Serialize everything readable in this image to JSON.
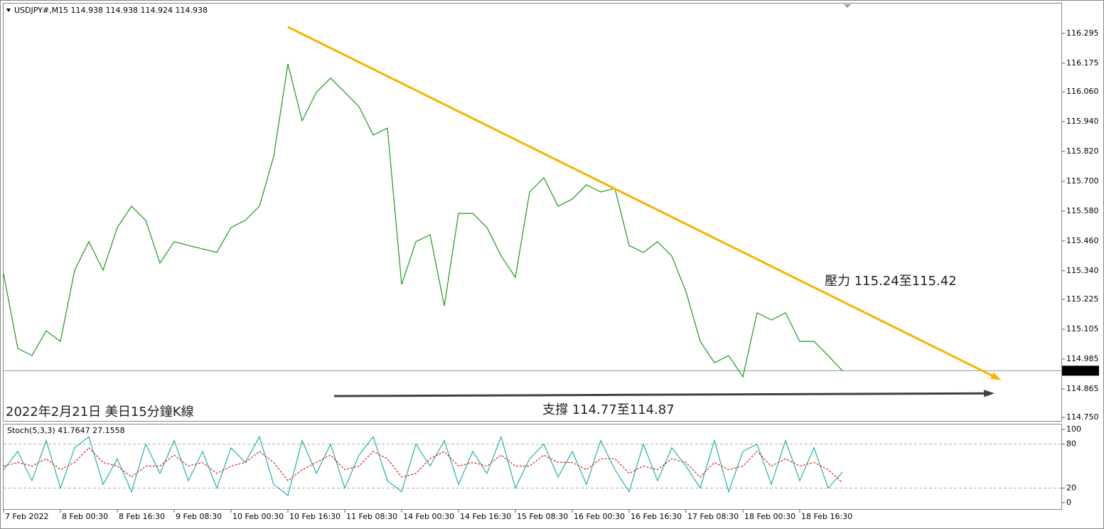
{
  "chart_data": [
    {
      "type": "line",
      "title": "USDJPY#,M15  114.938 114.938 114.924 114.938",
      "x": [
        0,
        8,
        16,
        24,
        32,
        40,
        48,
        56,
        64,
        72,
        80,
        88,
        96,
        104,
        112,
        120,
        128,
        136,
        144,
        152,
        160,
        168,
        176,
        184,
        192,
        200,
        208,
        216,
        224,
        232,
        240,
        248,
        256,
        264,
        272,
        280,
        288,
        296,
        304,
        312,
        320,
        328,
        336,
        344,
        352,
        360,
        368,
        376,
        384,
        392,
        400,
        408,
        416,
        424,
        432,
        440,
        448,
        456,
        464,
        472
      ],
      "values": [
        115.328,
        115.028,
        114.999,
        115.099,
        115.056,
        115.342,
        115.457,
        115.342,
        115.514,
        115.6,
        115.543,
        115.371,
        115.457,
        115.442,
        115.428,
        115.414,
        115.514,
        115.543,
        115.6,
        115.8,
        116.172,
        115.943,
        116.058,
        116.115,
        116.058,
        116.0,
        115.886,
        115.914,
        115.285,
        115.457,
        115.485,
        115.199,
        115.571,
        115.571,
        115.514,
        115.399,
        115.314,
        115.657,
        115.714,
        115.6,
        115.628,
        115.686,
        115.657,
        115.671,
        115.442,
        115.414,
        115.457,
        115.399,
        115.256,
        115.056,
        114.97,
        114.999,
        114.913,
        115.171,
        115.142,
        115.171,
        115.056,
        115.056,
        114.999,
        114.938
      ],
      "color": "#1a9a1a",
      "xlim": [
        0,
        595
      ],
      "ylim": [
        114.736,
        116.415
      ],
      "yticks": [
        116.295,
        116.175,
        {
          "value": 116.06,
          "label": "116.060"
        },
        {
          "value": 115.94,
          "label": "115.940"
        },
        {
          "value": 115.82,
          "label": "115.820"
        },
        {
          "value": 115.7,
          "label": "115.700"
        },
        {
          "value": 115.58,
          "label": "115.580"
        },
        {
          "value": 115.46,
          "label": "115.460"
        },
        {
          "value": 115.34,
          "label": "115.340"
        },
        115.225,
        115.105,
        114.985,
        114.865,
        {
          "value": 114.75,
          "label": "114.750"
        }
      ],
      "current_price": 114.938,
      "lines": [
        {
          "color": "#f5b400",
          "x": [
            160,
            560
          ],
          "y": [
            116.321,
            114.905
          ]
        },
        {
          "color": "#404040",
          "x": [
            186,
            556
          ],
          "y": [
            114.836,
            114.847
          ]
        }
      ],
      "annotations": [
        "壓力 115.24至115.42",
        "支撐 114.77至114.87",
        "2022年2月21日 美日15分鐘K線"
      ]
    },
    {
      "type": "line",
      "title": "Stoch(5,3,3) 41.7647 27.1558",
      "x": [
        0,
        8,
        16,
        24,
        32,
        40,
        48,
        56,
        64,
        72,
        80,
        88,
        96,
        104,
        112,
        120,
        128,
        136,
        144,
        152,
        160,
        168,
        176,
        184,
        192,
        200,
        208,
        216,
        224,
        232,
        240,
        248,
        256,
        264,
        272,
        280,
        288,
        296,
        304,
        312,
        320,
        328,
        336,
        344,
        352,
        360,
        368,
        376,
        384,
        392,
        400,
        408,
        416,
        424,
        432,
        440,
        448,
        456,
        464,
        472
      ],
      "series": [
        {
          "color": "#20b2aa",
          "values": [
            45,
            70,
            30,
            85,
            20,
            75,
            90,
            25,
            60,
            15,
            80,
            40,
            85,
            30,
            70,
            20,
            75,
            55,
            90,
            25,
            10,
            85,
            40,
            80,
            20,
            65,
            90,
            30,
            15,
            80,
            50,
            85,
            25,
            70,
            40,
            90,
            20,
            60,
            80,
            35,
            70,
            25,
            85,
            45,
            15,
            80,
            30,
            75,
            50,
            20,
            85,
            15,
            70,
            80,
            25,
            85,
            30,
            75,
            20,
            41.7647
          ]
        },
        {
          "color": "#e0201c",
          "dashed": true,
          "values": [
            50,
            55,
            50,
            60,
            45,
            55,
            75,
            55,
            50,
            35,
            50,
            50,
            65,
            50,
            55,
            40,
            50,
            55,
            70,
            55,
            30,
            45,
            55,
            65,
            45,
            50,
            70,
            60,
            35,
            40,
            60,
            70,
            50,
            55,
            50,
            65,
            50,
            50,
            65,
            55,
            55,
            45,
            60,
            60,
            40,
            50,
            45,
            60,
            55,
            35,
            55,
            45,
            50,
            70,
            50,
            60,
            50,
            55,
            45,
            27.1558
          ]
        }
      ],
      "xlim": [
        0,
        595
      ],
      "ylim": [
        0,
        100
      ],
      "yticks": [
        100,
        80,
        20,
        0
      ],
      "levels": [
        80,
        20
      ],
      "xticks": [
        {
          "value": 0,
          "label": "7 Feb 2022"
        },
        {
          "value": 32,
          "label": "8 Feb 00:30"
        },
        {
          "value": 64,
          "label": "8 Feb 16:30"
        },
        {
          "value": 96,
          "label": "9 Feb 08:30"
        },
        {
          "value": 128,
          "label": "10 Feb 00:30"
        },
        {
          "value": 160,
          "label": "10 Feb 16:30"
        },
        {
          "value": 192,
          "label": "11 Feb 08:30"
        },
        {
          "value": 224,
          "label": "14 Feb 00:30"
        },
        {
          "value": 256,
          "label": "14 Feb 16:30"
        },
        {
          "value": 288,
          "label": "15 Feb 08:30"
        },
        {
          "value": 320,
          "label": "16 Feb 00:30"
        },
        {
          "value": 352,
          "label": "16 Feb 16:30"
        },
        {
          "value": 384,
          "label": "17 Feb 08:30"
        },
        {
          "value": 416,
          "label": "18 Feb 00:30"
        },
        {
          "value": 448,
          "label": "18 Feb 16:30"
        }
      ]
    }
  ]
}
